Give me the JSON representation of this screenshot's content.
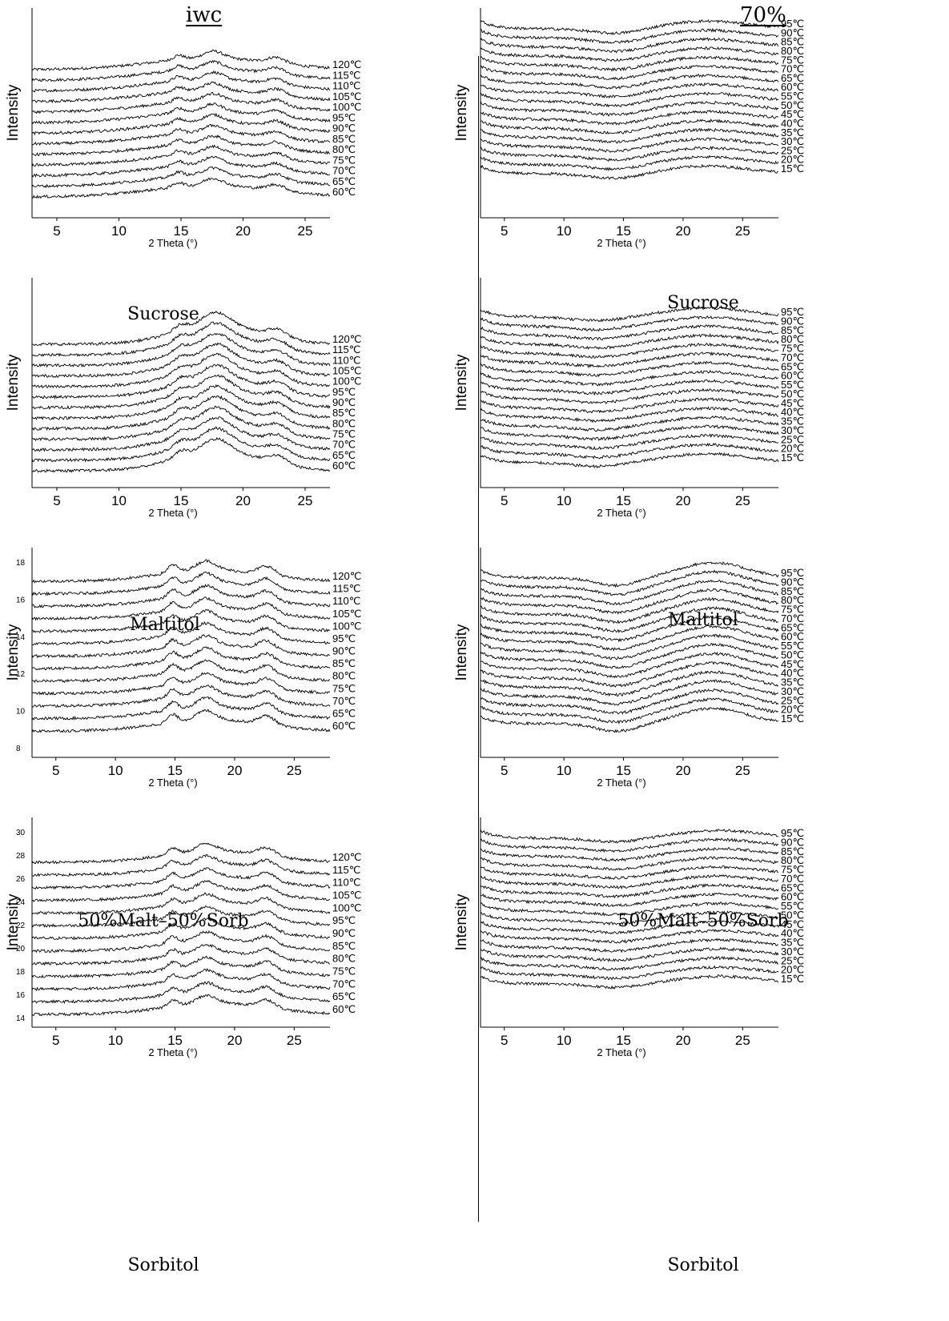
{
  "figure": {
    "column_headers": [
      "iwc",
      "70%"
    ]
  },
  "chart_data": [
    {
      "type": "line",
      "column": "iwc",
      "caption": "Sucrose",
      "xlabel": "2 Theta (°)",
      "ylabel": "Intensity",
      "xlim": [
        3,
        27
      ],
      "xticks": [
        5,
        10,
        15,
        20,
        25
      ],
      "yticks": [],
      "series_labels": [
        "120℃",
        "115℃",
        "110℃",
        "105℃",
        "100℃",
        "95℃",
        "90℃",
        "85℃",
        "80℃",
        "75℃",
        "70℃",
        "65℃",
        "60℃"
      ],
      "peaks": [
        {
          "x": 14.8,
          "amp": 0.35,
          "w": 0.6
        },
        {
          "x": 17.6,
          "amp": 0.55,
          "w": 1.1
        },
        {
          "x": 22.7,
          "amp": 0.45,
          "w": 1.0
        }
      ],
      "halo": {
        "x": 17.5,
        "amp": 0.9,
        "w": 7
      },
      "slope": 0.0
    },
    {
      "type": "line",
      "column": "70%",
      "caption": "Sucrose",
      "xlabel": "2 Theta (°)",
      "ylabel": "Intensity",
      "xlim": [
        3,
        28
      ],
      "xticks": [
        5,
        10,
        15,
        20,
        25
      ],
      "yticks": [],
      "series_labels": [
        "95℃",
        "90℃",
        "85℃",
        "80℃",
        "75℃",
        "70℃",
        "65℃",
        "60℃",
        "55℃",
        "50℃",
        "45℃",
        "40℃",
        "35℃",
        "30℃",
        "25℃",
        "20℃",
        "15℃"
      ],
      "peaks": [],
      "halo": {
        "x": 22,
        "amp": 0.6,
        "w": 5
      },
      "dip": {
        "x": 14.5,
        "amp": 0.4,
        "w": 3
      },
      "slope": 0.0
    },
    {
      "type": "line",
      "column": "iwc",
      "caption": "Maltitol",
      "xlabel": "2 Theta (°)",
      "ylabel": "Intensity",
      "xlim": [
        3,
        27
      ],
      "xticks": [
        5,
        10,
        15,
        20,
        25
      ],
      "yticks": [],
      "series_labels": [
        "120℃",
        "115℃",
        "110℃",
        "105℃",
        "100℃",
        "95℃",
        "90℃",
        "85℃",
        "80℃",
        "75℃",
        "70℃",
        "65℃",
        "60℃"
      ],
      "peaks": [
        {
          "x": 15.0,
          "amp": 0.5,
          "w": 0.8
        },
        {
          "x": 17.8,
          "amp": 1.0,
          "w": 1.5
        },
        {
          "x": 22.8,
          "amp": 0.6,
          "w": 1.1
        }
      ],
      "halo": {
        "x": 18,
        "amp": 1.5,
        "w": 5
      },
      "slope": 0.0
    },
    {
      "type": "line",
      "column": "70%",
      "caption": "Maltitol",
      "xlabel": "2 Theta (°)",
      "ylabel": "Intensity",
      "xlim": [
        3,
        28
      ],
      "xticks": [
        5,
        10,
        15,
        20,
        25
      ],
      "yticks": [],
      "series_labels": [
        "95℃",
        "90℃",
        "85℃",
        "80℃",
        "75℃",
        "70℃",
        "65℃",
        "60℃",
        "55℃",
        "50℃",
        "45℃",
        "40℃",
        "35℃",
        "30℃",
        "25℃",
        "20℃",
        "15℃"
      ],
      "peaks": [],
      "halo": {
        "x": 22,
        "amp": 0.7,
        "w": 5
      },
      "dip": {
        "x": 13,
        "amp": 0.3,
        "w": 3
      },
      "slope": 0.0
    },
    {
      "type": "line",
      "column": "iwc",
      "caption": "50%Malt–50%Sorb",
      "xlabel": "2 Theta (°)",
      "ylabel": "Intensity",
      "xlim": [
        3,
        28
      ],
      "xticks": [
        5,
        10,
        15,
        20,
        25
      ],
      "yticks": [
        8,
        10,
        12,
        14,
        16,
        18
      ],
      "ylim": [
        8,
        18
      ],
      "series_labels": [
        "120℃",
        "115℃",
        "110℃",
        "105℃",
        "100℃",
        "95℃",
        "90℃",
        "85℃",
        "80℃",
        "75℃",
        "70℃",
        "65℃",
        "60℃"
      ],
      "peaks": [
        {
          "x": 14.8,
          "amp": 0.6,
          "w": 0.6
        },
        {
          "x": 17.6,
          "amp": 0.7,
          "w": 1.1
        },
        {
          "x": 22.7,
          "amp": 0.7,
          "w": 1.0
        }
      ],
      "halo": {
        "x": 18,
        "amp": 0.9,
        "w": 6
      },
      "slope": 0.0
    },
    {
      "type": "line",
      "column": "70%",
      "caption": "50%Malt–50%Sorb",
      "xlabel": "2 Theta (°)",
      "ylabel": "Intensity",
      "xlim": [
        3,
        28
      ],
      "xticks": [
        5,
        10,
        15,
        20,
        25
      ],
      "yticks": [],
      "series_labels": [
        "95℃",
        "90℃",
        "85℃",
        "80℃",
        "75℃",
        "70℃",
        "65℃",
        "60℃",
        "55℃",
        "50℃",
        "45℃",
        "40℃",
        "35℃",
        "30℃",
        "25℃",
        "20℃",
        "15℃"
      ],
      "peaks": [],
      "halo": {
        "x": 22.5,
        "amp": 1.2,
        "w": 4
      },
      "dip": {
        "x": 14.5,
        "amp": 0.6,
        "w": 2.5
      },
      "slope": 0.0
    },
    {
      "type": "line",
      "column": "iwc",
      "caption": "Sorbitol",
      "xlabel": "2 Theta (°)",
      "ylabel": "Intensity",
      "xlim": [
        3,
        28
      ],
      "xticks": [
        5,
        10,
        15,
        20,
        25
      ],
      "yticks": [
        14,
        16,
        18,
        20,
        22,
        24,
        26,
        28,
        30
      ],
      "ylim": [
        14,
        30
      ],
      "series_labels": [
        "120℃",
        "115℃",
        "110℃",
        "105℃",
        "100℃",
        "95℃",
        "90℃",
        "85℃",
        "80℃",
        "75℃",
        "70℃",
        "65℃",
        "60℃"
      ],
      "peaks": [
        {
          "x": 14.8,
          "amp": 0.5,
          "w": 0.6
        },
        {
          "x": 17.6,
          "amp": 0.6,
          "w": 1.1
        },
        {
          "x": 22.7,
          "amp": 0.6,
          "w": 1.0
        }
      ],
      "halo": {
        "x": 18.5,
        "amp": 0.9,
        "w": 6
      },
      "slope": 0.0
    },
    {
      "type": "line",
      "column": "70%",
      "caption": "Sorbitol",
      "xlabel": "2 Theta (°)",
      "ylabel": "Intensity",
      "xlim": [
        3,
        28
      ],
      "xticks": [
        5,
        10,
        15,
        20,
        25
      ],
      "yticks": [],
      "series_labels": [
        "95℃",
        "90℃",
        "85℃",
        "80℃",
        "75℃",
        "70℃",
        "65℃",
        "60℃",
        "55℃",
        "50℃",
        "45℃",
        "40℃",
        "35℃",
        "30℃",
        "25℃",
        "20℃",
        "15℃"
      ],
      "peaks": [],
      "halo": {
        "x": 23,
        "amp": 0.6,
        "w": 5
      },
      "dip": {
        "x": 14.5,
        "amp": 0.3,
        "w": 3
      },
      "slope": 0.0
    }
  ]
}
